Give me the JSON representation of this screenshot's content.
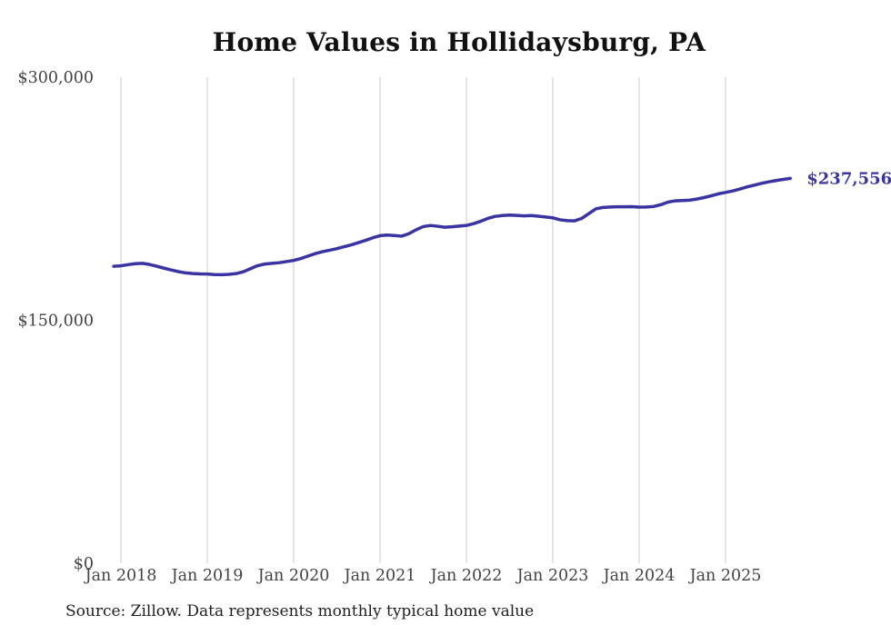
{
  "header": {
    "title": "Home Values in Hollidaysburg, PA"
  },
  "footer": {
    "source_note": "Source: Zillow. Data represents monthly typical home value"
  },
  "chart_data": {
    "type": "line",
    "title": "Home Values in Hollidaysburg, PA",
    "xlabel": "",
    "ylabel": "",
    "ylim": [
      0,
      300000
    ],
    "grid": "vertical-only",
    "legend": "none",
    "end_label": "$237,556",
    "last_value": 237556,
    "colors": {
      "line": "#3a34a3",
      "end_label": "#3a34a3",
      "gridline": "#cbcbcb",
      "tick_label": "#434343",
      "title": "#111111",
      "source": "#1e1e1e",
      "background": "#ffffff"
    },
    "y_ticks": [
      {
        "label": "$0",
        "value": 0
      },
      {
        "label": "$150,000",
        "value": 150000
      },
      {
        "label": "$300,000",
        "value": 300000
      }
    ],
    "x_ticks": [
      {
        "label": "Jan 2018",
        "month_index": 1
      },
      {
        "label": "Jan 2019",
        "month_index": 13
      },
      {
        "label": "Jan 2020",
        "month_index": 25
      },
      {
        "label": "Jan 2021",
        "month_index": 37
      },
      {
        "label": "Jan 2022",
        "month_index": 49
      },
      {
        "label": "Jan 2023",
        "month_index": 61
      },
      {
        "label": "Jan 2024",
        "month_index": 73
      },
      {
        "label": "Jan 2025",
        "month_index": 85
      }
    ],
    "x": [
      "2017-12",
      "2018-01",
      "2018-02",
      "2018-03",
      "2018-04",
      "2018-05",
      "2018-06",
      "2018-07",
      "2018-08",
      "2018-09",
      "2018-10",
      "2018-11",
      "2018-12",
      "2019-01",
      "2019-02",
      "2019-03",
      "2019-04",
      "2019-05",
      "2019-06",
      "2019-07",
      "2019-08",
      "2019-09",
      "2019-10",
      "2019-11",
      "2019-12",
      "2020-01",
      "2020-02",
      "2020-03",
      "2020-04",
      "2020-05",
      "2020-06",
      "2020-07",
      "2020-08",
      "2020-09",
      "2020-10",
      "2020-11",
      "2020-12",
      "2021-01",
      "2021-02",
      "2021-03",
      "2021-04",
      "2021-05",
      "2021-06",
      "2021-07",
      "2021-08",
      "2021-09",
      "2021-10",
      "2021-11",
      "2021-12",
      "2022-01",
      "2022-02",
      "2022-03",
      "2022-04",
      "2022-05",
      "2022-06",
      "2022-07",
      "2022-08",
      "2022-09",
      "2022-10",
      "2022-11",
      "2022-12",
      "2023-01",
      "2023-02",
      "2023-03",
      "2023-04",
      "2023-05",
      "2023-06",
      "2023-07",
      "2023-08",
      "2023-09",
      "2023-10",
      "2023-11",
      "2023-12",
      "2024-01",
      "2024-02",
      "2024-03",
      "2024-04",
      "2024-05",
      "2024-06",
      "2024-07",
      "2024-08",
      "2024-09",
      "2024-10",
      "2024-11",
      "2024-12",
      "2025-01",
      "2025-02",
      "2025-03",
      "2025-04",
      "2025-05",
      "2025-06",
      "2025-07",
      "2025-08",
      "2025-09",
      "2025-10"
    ],
    "series": [
      {
        "name": "Typical home value",
        "color": "#3a34a3",
        "values": [
          183300,
          183600,
          184300,
          184900,
          185100,
          184400,
          183300,
          182100,
          181000,
          180000,
          179200,
          178800,
          178600,
          178500,
          178200,
          178100,
          178300,
          178800,
          179900,
          181800,
          183700,
          184700,
          185100,
          185500,
          186200,
          186900,
          188100,
          189600,
          191100,
          192300,
          193200,
          194200,
          195400,
          196500,
          197900,
          199300,
          200900,
          202200,
          202600,
          202300,
          201900,
          203400,
          205800,
          207800,
          208500,
          208000,
          207400,
          207700,
          208100,
          208500,
          209600,
          211100,
          212900,
          214100,
          214600,
          214900,
          214700,
          214400,
          214600,
          214200,
          213700,
          213200,
          212000,
          211500,
          211300,
          212800,
          215800,
          218800,
          219600,
          219900,
          220000,
          220000,
          220100,
          219800,
          219900,
          220200,
          221300,
          222900,
          223700,
          223900,
          224100,
          224800,
          225700,
          226800,
          228000,
          228900,
          229800,
          231000,
          232300,
          233400,
          234500,
          235400,
          236200,
          236900,
          237556
        ]
      }
    ]
  }
}
